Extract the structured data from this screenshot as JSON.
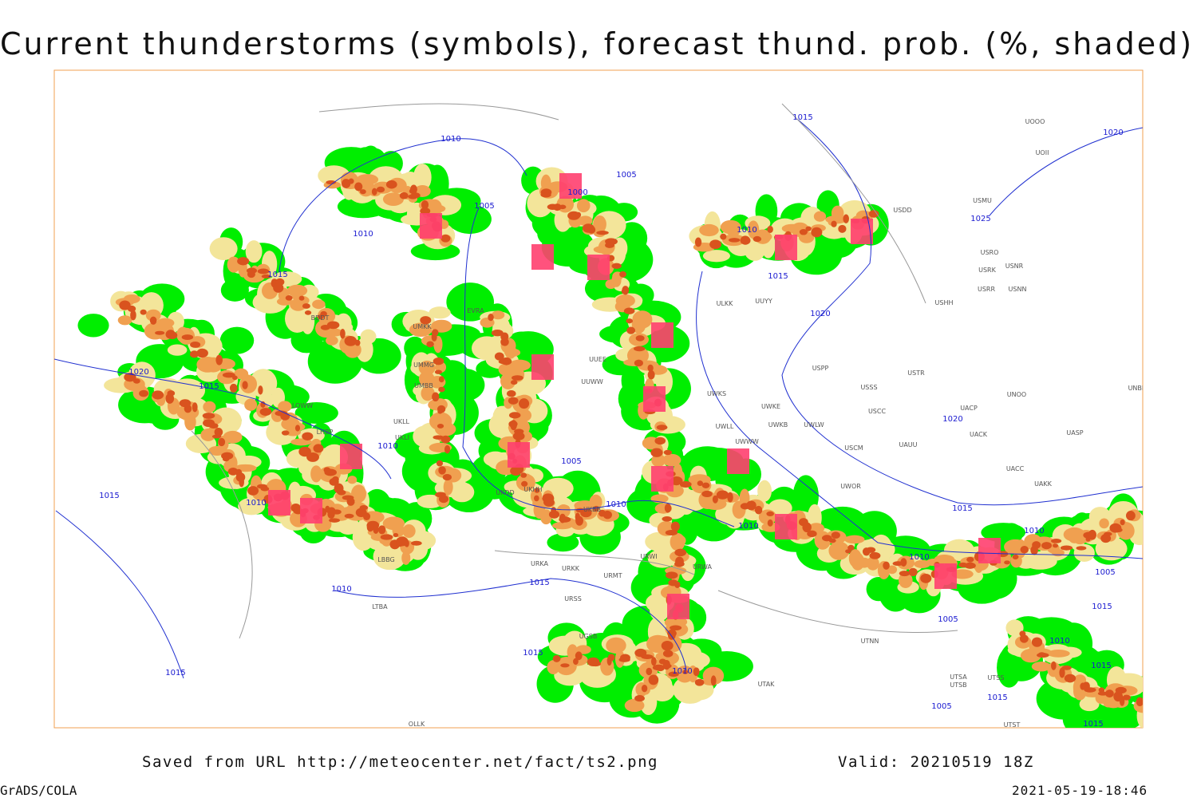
{
  "header": {
    "title": "Current thunderstorms (symbols), forecast thund. prob. (%, shaded)"
  },
  "map": {
    "isobar_labels": [
      "1010",
      "1005",
      "1000",
      "1005",
      "1010",
      "1015",
      "1015",
      "1020",
      "1025",
      "1010",
      "1015",
      "1020",
      "1020",
      "1015",
      "1010",
      "1005",
      "1015",
      "1010",
      "1010",
      "1015",
      "1020",
      "1010",
      "1010",
      "1010",
      "1005",
      "1010",
      "1015",
      "1015",
      "1005",
      "1015",
      "1015",
      "1010",
      "1010",
      "1015",
      "1015",
      "1005",
      "1015"
    ],
    "station_labels": [
      "UOOO",
      "UOII",
      "USDD",
      "USMU",
      "USRO",
      "USRK",
      "USNR",
      "USRR",
      "USNN",
      "USHH",
      "ULKK",
      "UUYY",
      "USPP",
      "USSS",
      "USTR",
      "UNOO",
      "USCC",
      "UWKE",
      "UWKS",
      "UWKB",
      "UWLW",
      "UWLL",
      "UWWW",
      "UACP",
      "UACK",
      "UASP",
      "UNBB",
      "USCM",
      "UAUU",
      "UACC",
      "UAKK",
      "UWOR",
      "URWI",
      "URKK",
      "URMT",
      "URSS",
      "URWA",
      "UGSB",
      "UTAK",
      "UTNN",
      "UTSA",
      "UTSB",
      "UTSS",
      "UTST",
      "UMKK",
      "UMMG",
      "UMBB",
      "UKLL",
      "UKLI",
      "UKBB",
      "UKHH",
      "UKDD",
      "URKA",
      "LBBG",
      "LTBA",
      "UUEE",
      "UUWW",
      "EVRA",
      "BDDT",
      "LOWW",
      "LHBP",
      "OLLK"
    ]
  },
  "footer": {
    "source": "Saved from URL http://meteocenter.net/fact/ts2.png",
    "valid": "Valid: 20210519 18Z",
    "software": "GrADS/COLA",
    "timestamp": "2021-05-19-18:46"
  }
}
